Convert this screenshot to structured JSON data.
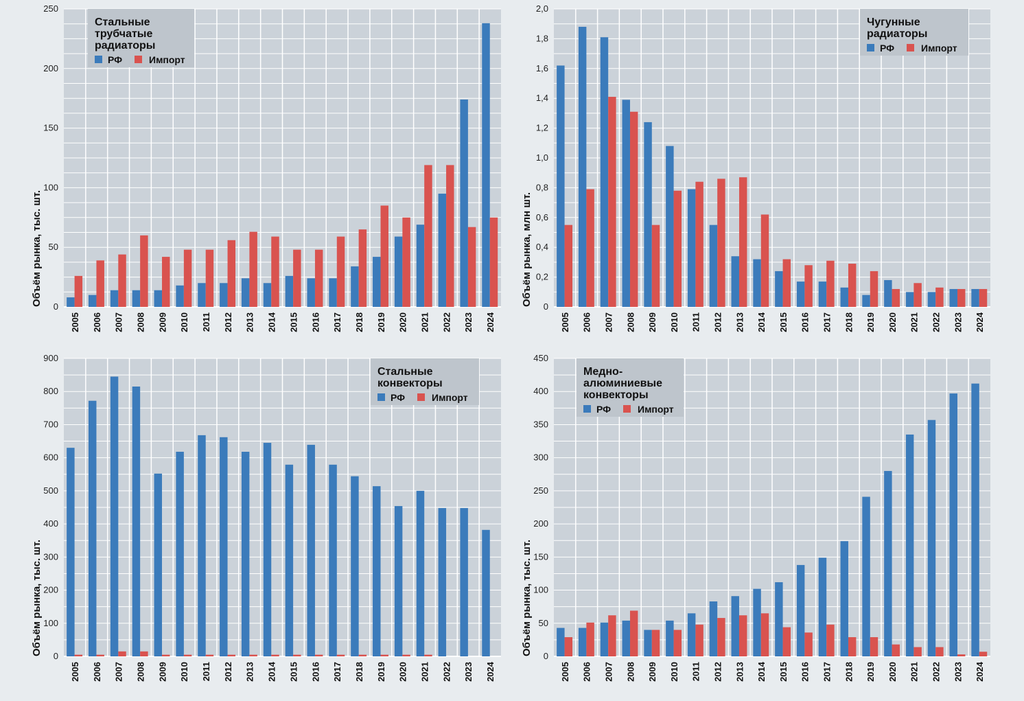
{
  "colors": {
    "rf": "#3b7bbb",
    "import": "#d9534f",
    "plot_bg": "#cbd2d9",
    "legend_bg": "#bec5cc",
    "grid": "#ffffff",
    "page_bg": "#e8ecef"
  },
  "legend_labels": {
    "rf": "РФ",
    "import": "Импорт"
  },
  "chart_data": [
    {
      "type": "bar",
      "title": [
        "Стальные",
        "трубчатые",
        "радиаторы"
      ],
      "ylabel": "Объём рынка, тыс. шт.",
      "legend_position": "top-left",
      "grid": true,
      "ylim": [
        0,
        250
      ],
      "yticks": [
        0,
        50,
        100,
        150,
        200,
        250
      ],
      "ytick_labels": [
        "0",
        "50",
        "100",
        "150",
        "200",
        "250"
      ],
      "categories": [
        "2005",
        "2006",
        "2007",
        "2008",
        "2009",
        "2010",
        "2011",
        "2012",
        "2013",
        "2014",
        "2015",
        "2016",
        "2017",
        "2018",
        "2019",
        "2020",
        "2021",
        "2022",
        "2023",
        "2024"
      ],
      "series": [
        {
          "name": "РФ",
          "values": [
            8,
            10,
            14,
            14,
            14,
            18,
            20,
            20,
            24,
            20,
            26,
            24,
            24,
            34,
            42,
            59,
            69,
            95,
            174,
            238
          ]
        },
        {
          "name": "Импорт",
          "values": [
            26,
            39,
            44,
            60,
            42,
            48,
            48,
            56,
            63,
            59,
            48,
            48,
            59,
            65,
            85,
            75,
            119,
            119,
            67,
            75
          ]
        }
      ]
    },
    {
      "type": "bar",
      "title": [
        "Чугунные",
        "радиаторы"
      ],
      "ylabel": "Объём рынка, млн шт.",
      "legend_position": "top-right",
      "grid": true,
      "ylim": [
        0,
        2.0
      ],
      "yticks": [
        0,
        0.2,
        0.4,
        0.6,
        0.8,
        1.0,
        1.2,
        1.4,
        1.6,
        1.8,
        2.0
      ],
      "ytick_labels": [
        "0",
        "0,2",
        "0,4",
        "0,6",
        "0,8",
        "1,0",
        "1,2",
        "1,4",
        "1,6",
        "1,8",
        "2,0"
      ],
      "categories": [
        "2005",
        "2006",
        "2007",
        "2008",
        "2009",
        "2010",
        "2011",
        "2012",
        "2013",
        "2014",
        "2015",
        "2016",
        "2017",
        "2018",
        "2019",
        "2020",
        "2021",
        "2022",
        "2023",
        "2024"
      ],
      "series": [
        {
          "name": "РФ",
          "values": [
            1.62,
            1.88,
            1.81,
            1.39,
            1.24,
            1.08,
            0.79,
            0.55,
            0.34,
            0.32,
            0.24,
            0.17,
            0.17,
            0.13,
            0.08,
            0.18,
            0.1,
            0.1,
            0.12,
            0.12
          ]
        },
        {
          "name": "Импорт",
          "values": [
            0.55,
            0.79,
            1.41,
            1.31,
            0.55,
            0.78,
            0.84,
            0.86,
            0.87,
            0.62,
            0.32,
            0.28,
            0.31,
            0.29,
            0.24,
            0.12,
            0.16,
            0.13,
            0.12,
            0.12
          ]
        }
      ]
    },
    {
      "type": "bar",
      "title": [
        "Стальные",
        "конвекторы"
      ],
      "ylabel": "Объём рынка, тыс. шт.",
      "legend_position": "top-right",
      "grid": true,
      "ylim": [
        0,
        900
      ],
      "yticks": [
        0,
        100,
        200,
        300,
        400,
        500,
        600,
        700,
        800,
        900
      ],
      "ytick_labels": [
        "0",
        "100",
        "200",
        "300",
        "400",
        "500",
        "600",
        "700",
        "800",
        "900"
      ],
      "categories": [
        "2005",
        "2006",
        "2007",
        "2008",
        "2009",
        "2010",
        "2011",
        "2012",
        "2013",
        "2014",
        "2015",
        "2016",
        "2017",
        "2018",
        "2019",
        "2020",
        "2021",
        "2022",
        "2023",
        "2024"
      ],
      "series": [
        {
          "name": "РФ",
          "values": [
            630,
            772,
            845,
            815,
            552,
            618,
            668,
            662,
            618,
            645,
            579,
            639,
            579,
            544,
            514,
            454,
            500,
            448,
            448,
            382
          ]
        },
        {
          "name": "Импорт",
          "values": [
            5,
            5,
            15,
            15,
            5,
            5,
            5,
            5,
            5,
            5,
            5,
            5,
            5,
            5,
            5,
            5,
            5,
            0,
            0,
            0
          ]
        }
      ]
    },
    {
      "type": "bar",
      "title": [
        "Медно-",
        "алюминиевые",
        "конвекторы"
      ],
      "ylabel": "Объём рынка, тыс. шт.",
      "legend_position": "top-left",
      "grid": true,
      "ylim": [
        0,
        450
      ],
      "yticks": [
        0,
        50,
        100,
        150,
        200,
        250,
        300,
        350,
        400,
        450
      ],
      "ytick_labels": [
        "0",
        "50",
        "100",
        "150",
        "200",
        "250",
        "300",
        "350",
        "400",
        "450"
      ],
      "categories": [
        "2005",
        "2006",
        "2007",
        "2008",
        "2009",
        "2010",
        "2011",
        "2012",
        "2013",
        "2014",
        "2015",
        "2016",
        "2017",
        "2018",
        "2019",
        "2020",
        "2021",
        "2022",
        "2023",
        "2024"
      ],
      "series": [
        {
          "name": "РФ",
          "values": [
            43,
            43,
            51,
            54,
            40,
            54,
            65,
            83,
            91,
            102,
            112,
            138,
            149,
            174,
            241,
            280,
            335,
            357,
            397,
            412
          ]
        },
        {
          "name": "Импорт",
          "values": [
            29,
            51,
            62,
            69,
            40,
            40,
            48,
            58,
            62,
            65,
            44,
            36,
            48,
            29,
            29,
            18,
            14,
            14,
            3,
            7
          ]
        }
      ]
    }
  ]
}
